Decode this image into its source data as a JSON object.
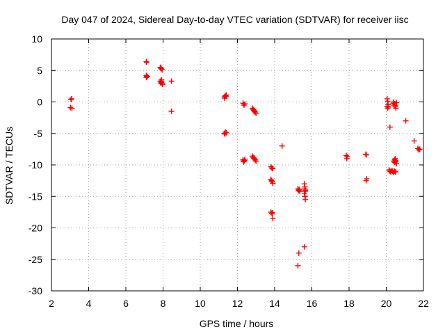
{
  "colors": {
    "points": "#ff0000",
    "axes": "#000000",
    "grid": "#a0a0a0",
    "background": "#ffffff"
  },
  "chart_data": {
    "type": "scatter",
    "title": "Day 047 of 2024, Sidereal Day-to-day VTEC variation (SDTVAR) for receiver iisc",
    "xlabel": "GPS time / hours",
    "ylabel": "SDTVAR / TECUs",
    "xlim": [
      2,
      22
    ],
    "ylim": [
      -30,
      10
    ],
    "xticks": [
      2,
      4,
      6,
      8,
      10,
      12,
      14,
      16,
      18,
      20,
      22
    ],
    "yticks": [
      10,
      5,
      0,
      -5,
      -10,
      -15,
      -20,
      -25,
      -30
    ],
    "grid": true,
    "marker": "+",
    "series": [
      {
        "name": "SDTVAR",
        "x": [
          3.05,
          3.08,
          3.02,
          3.1,
          7.1,
          7.12,
          7.15,
          7.1,
          7.13,
          7.1,
          7.85,
          7.9,
          7.95,
          7.88,
          7.92,
          7.85,
          7.9,
          7.95,
          7.88,
          7.92,
          7.97,
          8.45,
          8.45,
          11.3,
          11.35,
          11.4,
          11.32,
          11.38,
          11.3,
          11.35,
          11.4,
          11.33,
          12.3,
          12.35,
          12.4,
          12.33,
          12.38,
          12.3,
          12.35,
          12.4,
          12.8,
          12.85,
          12.9,
          12.95,
          13.0,
          12.87,
          12.92,
          12.8,
          12.85,
          12.9,
          12.95,
          13.0,
          12.88,
          13.8,
          13.85,
          13.9,
          13.8,
          13.85,
          13.9,
          13.83,
          13.8,
          13.85,
          13.9,
          13.88,
          14.4,
          15.25,
          15.3,
          15.35,
          15.28,
          15.32,
          15.3,
          15.25,
          15.6,
          15.62,
          15.65,
          15.6,
          15.63,
          15.65,
          15.62,
          15.64,
          15.6,
          17.85,
          17.88,
          17.9,
          18.9,
          18.93,
          18.95,
          18.92,
          20.05,
          20.08,
          20.1,
          20.05,
          20.08,
          20.1,
          20.15,
          20.2,
          20.25,
          20.3,
          20.35,
          20.4,
          20.45,
          20.5,
          20.38,
          20.42,
          20.48,
          20.52,
          20.4,
          20.45,
          20.5,
          20.55,
          20.45,
          20.5,
          20.55,
          20.4,
          20.45,
          20.5,
          20.48,
          20.2,
          21.05,
          21.5,
          21.7,
          21.75,
          21.8
        ],
        "y": [
          0.4,
          0.5,
          -0.9,
          -1.0,
          6.4,
          6.3,
          4.0,
          4.2,
          4.1,
          3.9,
          5.5,
          5.3,
          5.1,
          5.4,
          3.5,
          3.3,
          3.1,
          2.9,
          3.0,
          3.2,
          2.8,
          3.3,
          -1.5,
          0.8,
          1.0,
          1.1,
          0.6,
          0.9,
          -5.0,
          -4.8,
          -4.9,
          -5.1,
          -0.2,
          -0.5,
          -0.3,
          -9.5,
          -9.3,
          -9.2,
          -9.4,
          -9.1,
          -1.0,
          -1.2,
          -1.4,
          -1.6,
          -1.8,
          -1.3,
          -1.5,
          -8.6,
          -8.8,
          -9.0,
          -9.2,
          -9.4,
          -8.9,
          -10.3,
          -10.5,
          -10.6,
          -12.3,
          -12.6,
          -12.9,
          -12.5,
          -17.5,
          -17.7,
          -18.5,
          -17.6,
          -7.0,
          -13.8,
          -14.0,
          -14.2,
          -14.1,
          -13.9,
          -24.0,
          -26.0,
          -13.0,
          -13.5,
          -14.0,
          -14.5,
          -15.0,
          -15.5,
          -13.8,
          -14.2,
          -23.0,
          -8.5,
          -9.0,
          -8.7,
          -8.3,
          -8.4,
          -12.2,
          -12.5,
          0.5,
          0.1,
          -0.4,
          -0.7,
          -1.0,
          -0.8,
          -10.8,
          -11.0,
          -11.1,
          -10.9,
          -11.0,
          -11.2,
          -11.0,
          -11.1,
          -0.2,
          -0.5,
          -0.7,
          -1.0,
          0.0,
          -0.3,
          -0.6,
          -0.1,
          -9.2,
          -9.5,
          -9.8,
          -9.4,
          -9.6,
          -9.3,
          -9.0,
          -4.0,
          -3.0,
          -6.2,
          -7.4,
          -7.6,
          -7.5
        ]
      }
    ]
  }
}
